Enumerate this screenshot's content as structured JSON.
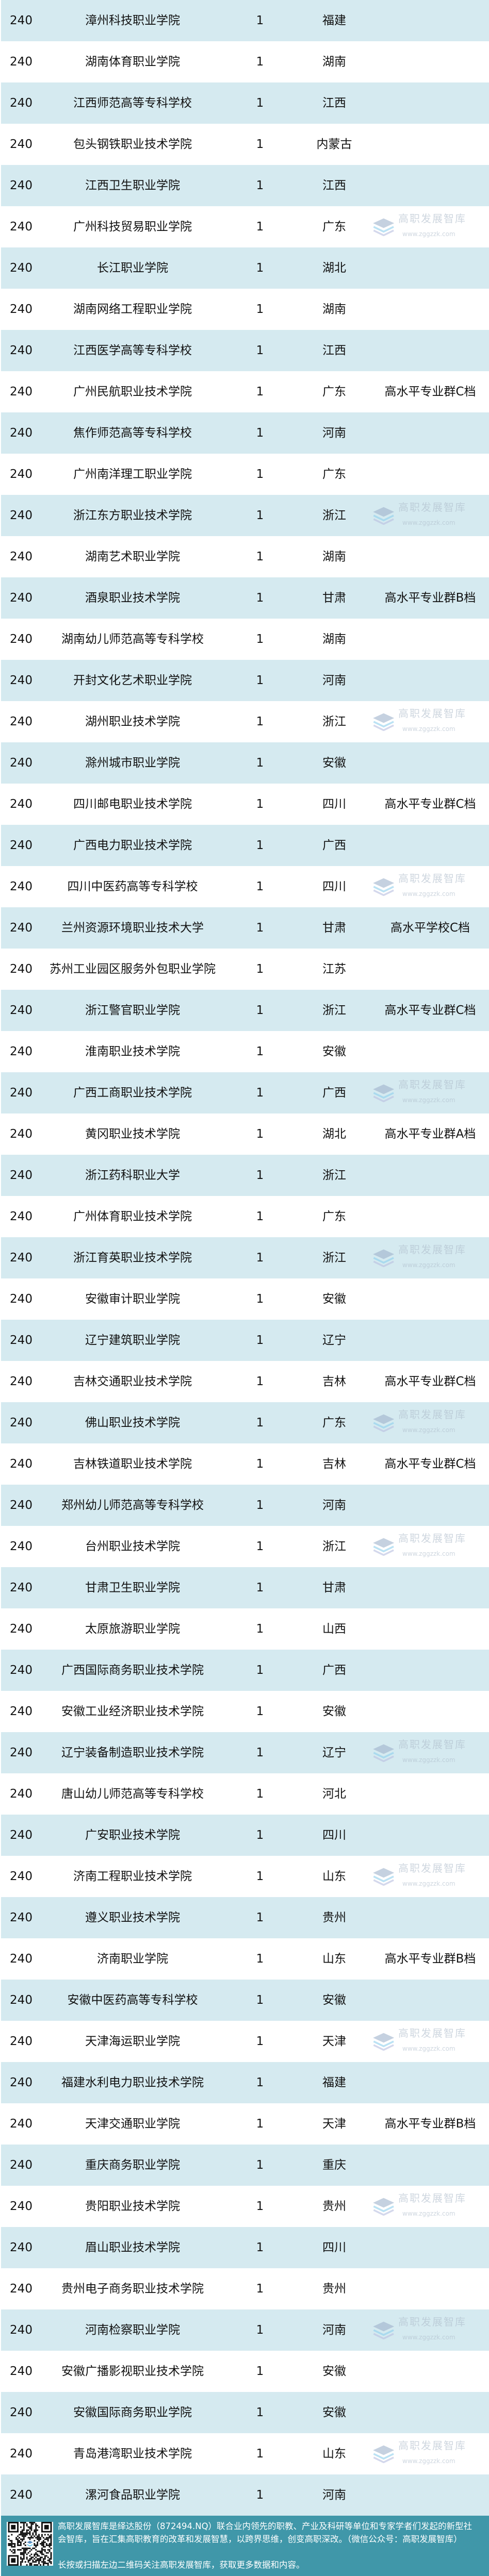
{
  "colors": {
    "row_alt": "#d5eaf0",
    "row": "#ffffff",
    "footer_bg": "#4097a9",
    "footer_text": "#ffffff"
  },
  "watermark": {
    "cn": "高职发展智库",
    "url": "www.zggzzk.com"
  },
  "rows": [
    {
      "rank": "240",
      "name": "漳州科技职业学院",
      "count": "1",
      "province": "福建",
      "level": ""
    },
    {
      "rank": "240",
      "name": "湖南体育职业学院",
      "count": "1",
      "province": "湖南",
      "level": ""
    },
    {
      "rank": "240",
      "name": "江西师范高等专科学校",
      "count": "1",
      "province": "江西",
      "level": ""
    },
    {
      "rank": "240",
      "name": "包头钢铁职业技术学院",
      "count": "1",
      "province": "内蒙古",
      "level": ""
    },
    {
      "rank": "240",
      "name": "江西卫生职业学院",
      "count": "1",
      "province": "江西",
      "level": ""
    },
    {
      "rank": "240",
      "name": "广州科技贸易职业学院",
      "count": "1",
      "province": "广东",
      "level": ""
    },
    {
      "rank": "240",
      "name": "长江职业学院",
      "count": "1",
      "province": "湖北",
      "level": ""
    },
    {
      "rank": "240",
      "name": "湖南网络工程职业学院",
      "count": "1",
      "province": "湖南",
      "level": ""
    },
    {
      "rank": "240",
      "name": "江西医学高等专科学校",
      "count": "1",
      "province": "江西",
      "level": ""
    },
    {
      "rank": "240",
      "name": "广州民航职业技术学院",
      "count": "1",
      "province": "广东",
      "level": "高水平专业群C档"
    },
    {
      "rank": "240",
      "name": "焦作师范高等专科学校",
      "count": "1",
      "province": "河南",
      "level": ""
    },
    {
      "rank": "240",
      "name": "广州南洋理工职业学院",
      "count": "1",
      "province": "广东",
      "level": ""
    },
    {
      "rank": "240",
      "name": "浙江东方职业技术学院",
      "count": "1",
      "province": "浙江",
      "level": ""
    },
    {
      "rank": "240",
      "name": "湖南艺术职业学院",
      "count": "1",
      "province": "湖南",
      "level": ""
    },
    {
      "rank": "240",
      "name": "酒泉职业技术学院",
      "count": "1",
      "province": "甘肃",
      "level": "高水平专业群B档"
    },
    {
      "rank": "240",
      "name": "湖南幼儿师范高等专科学校",
      "count": "1",
      "province": "湖南",
      "level": ""
    },
    {
      "rank": "240",
      "name": "开封文化艺术职业学院",
      "count": "1",
      "province": "河南",
      "level": ""
    },
    {
      "rank": "240",
      "name": "湖州职业技术学院",
      "count": "1",
      "province": "浙江",
      "level": ""
    },
    {
      "rank": "240",
      "name": "滁州城市职业学院",
      "count": "1",
      "province": "安徽",
      "level": ""
    },
    {
      "rank": "240",
      "name": "四川邮电职业技术学院",
      "count": "1",
      "province": "四川",
      "level": "高水平专业群C档"
    },
    {
      "rank": "240",
      "name": "广西电力职业技术学院",
      "count": "1",
      "province": "广西",
      "level": ""
    },
    {
      "rank": "240",
      "name": "四川中医药高等专科学校",
      "count": "1",
      "province": "四川",
      "level": ""
    },
    {
      "rank": "240",
      "name": "兰州资源环境职业技术大学",
      "count": "1",
      "province": "甘肃",
      "level": "高水平学校C档"
    },
    {
      "rank": "240",
      "name": "苏州工业园区服务外包职业学院",
      "count": "1",
      "province": "江苏",
      "level": ""
    },
    {
      "rank": "240",
      "name": "浙江警官职业学院",
      "count": "1",
      "province": "浙江",
      "level": "高水平专业群C档"
    },
    {
      "rank": "240",
      "name": "淮南职业技术学院",
      "count": "1",
      "province": "安徽",
      "level": ""
    },
    {
      "rank": "240",
      "name": "广西工商职业技术学院",
      "count": "1",
      "province": "广西",
      "level": ""
    },
    {
      "rank": "240",
      "name": "黄冈职业技术学院",
      "count": "1",
      "province": "湖北",
      "level": "高水平专业群A档"
    },
    {
      "rank": "240",
      "name": "浙江药科职业大学",
      "count": "1",
      "province": "浙江",
      "level": ""
    },
    {
      "rank": "240",
      "name": "广州体育职业技术学院",
      "count": "1",
      "province": "广东",
      "level": ""
    },
    {
      "rank": "240",
      "name": "浙江育英职业技术学院",
      "count": "1",
      "province": "浙江",
      "level": ""
    },
    {
      "rank": "240",
      "name": "安徽审计职业学院",
      "count": "1",
      "province": "安徽",
      "level": ""
    },
    {
      "rank": "240",
      "name": "辽宁建筑职业学院",
      "count": "1",
      "province": "辽宁",
      "level": ""
    },
    {
      "rank": "240",
      "name": "吉林交通职业技术学院",
      "count": "1",
      "province": "吉林",
      "level": "高水平专业群C档"
    },
    {
      "rank": "240",
      "name": "佛山职业技术学院",
      "count": "1",
      "province": "广东",
      "level": ""
    },
    {
      "rank": "240",
      "name": "吉林铁道职业技术学院",
      "count": "1",
      "province": "吉林",
      "level": "高水平专业群C档"
    },
    {
      "rank": "240",
      "name": "郑州幼儿师范高等专科学校",
      "count": "1",
      "province": "河南",
      "level": ""
    },
    {
      "rank": "240",
      "name": "台州职业技术学院",
      "count": "1",
      "province": "浙江",
      "level": ""
    },
    {
      "rank": "240",
      "name": "甘肃卫生职业学院",
      "count": "1",
      "province": "甘肃",
      "level": ""
    },
    {
      "rank": "240",
      "name": "太原旅游职业学院",
      "count": "1",
      "province": "山西",
      "level": ""
    },
    {
      "rank": "240",
      "name": "广西国际商务职业技术学院",
      "count": "1",
      "province": "广西",
      "level": ""
    },
    {
      "rank": "240",
      "name": "安徽工业经济职业技术学院",
      "count": "1",
      "province": "安徽",
      "level": ""
    },
    {
      "rank": "240",
      "name": "辽宁装备制造职业技术学院",
      "count": "1",
      "province": "辽宁",
      "level": ""
    },
    {
      "rank": "240",
      "name": "唐山幼儿师范高等专科学校",
      "count": "1",
      "province": "河北",
      "level": ""
    },
    {
      "rank": "240",
      "name": "广安职业技术学院",
      "count": "1",
      "province": "四川",
      "level": ""
    },
    {
      "rank": "240",
      "name": "济南工程职业技术学院",
      "count": "1",
      "province": "山东",
      "level": ""
    },
    {
      "rank": "240",
      "name": "遵义职业技术学院",
      "count": "1",
      "province": "贵州",
      "level": ""
    },
    {
      "rank": "240",
      "name": "济南职业学院",
      "count": "1",
      "province": "山东",
      "level": "高水平专业群B档"
    },
    {
      "rank": "240",
      "name": "安徽中医药高等专科学校",
      "count": "1",
      "province": "安徽",
      "level": ""
    },
    {
      "rank": "240",
      "name": "天津海运职业学院",
      "count": "1",
      "province": "天津",
      "level": ""
    },
    {
      "rank": "240",
      "name": "福建水利电力职业技术学院",
      "count": "1",
      "province": "福建",
      "level": ""
    },
    {
      "rank": "240",
      "name": "天津交通职业学院",
      "count": "1",
      "province": "天津",
      "level": "高水平专业群B档"
    },
    {
      "rank": "240",
      "name": "重庆商务职业学院",
      "count": "1",
      "province": "重庆",
      "level": ""
    },
    {
      "rank": "240",
      "name": "贵阳职业技术学院",
      "count": "1",
      "province": "贵州",
      "level": ""
    },
    {
      "rank": "240",
      "name": "眉山职业技术学院",
      "count": "1",
      "province": "四川",
      "level": ""
    },
    {
      "rank": "240",
      "name": "贵州电子商务职业技术学院",
      "count": "1",
      "province": "贵州",
      "level": ""
    },
    {
      "rank": "240",
      "name": "河南检察职业学院",
      "count": "1",
      "province": "河南",
      "level": ""
    },
    {
      "rank": "240",
      "name": "安徽广播影视职业技术学院",
      "count": "1",
      "province": "安徽",
      "level": ""
    },
    {
      "rank": "240",
      "name": "安徽国际商务职业学院",
      "count": "1",
      "province": "安徽",
      "level": ""
    },
    {
      "rank": "240",
      "name": "青岛港湾职业技术学院",
      "count": "1",
      "province": "山东",
      "level": ""
    },
    {
      "rank": "240",
      "name": "漯河食品职业学院",
      "count": "1",
      "province": "河南",
      "level": ""
    }
  ],
  "footer": {
    "line1": "高职发展智库是绎达股份（872494.NQ）联合业内领先的职教、产业及科研等单位和专家学者们发起的新型社",
    "line2": "会智库，旨在汇集高职教育的改革和发展智慧，以跨界思维，创变高职深改。（微信公众号：高职发展智库）",
    "line3": "长按或扫描左边二维码关注高职发展智库，获取更多数据和内容。"
  }
}
